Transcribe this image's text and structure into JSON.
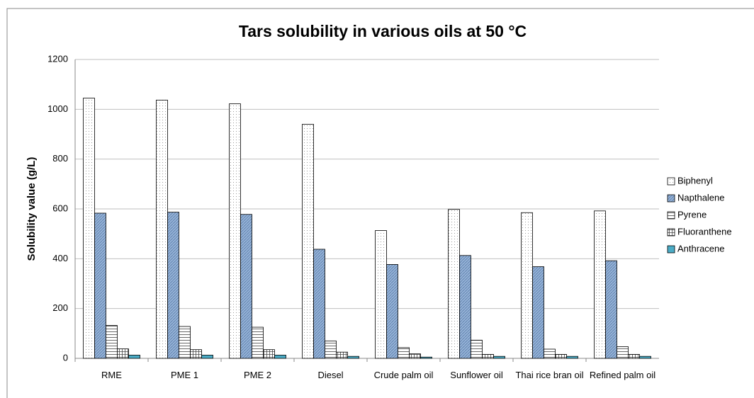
{
  "chart_data": {
    "type": "bar",
    "title": "Tars solubility in various oils at 50 °C",
    "y_label": "Solubility value (g/L)",
    "categories": [
      "RME",
      "PME 1",
      "PME 2",
      "Diesel",
      "Crude palm oil",
      "Sunflower oil",
      "Thai rice bran oil",
      "Refined palm oil"
    ],
    "series": [
      {
        "name": "Biphenyl",
        "color": "#ffffff",
        "pattern": "dots",
        "values": [
          1045,
          1037,
          1022,
          940,
          513,
          598,
          585,
          592
        ]
      },
      {
        "name": "Napthalene",
        "color": "#95b3d7",
        "pattern": "diagonal",
        "values": [
          583,
          587,
          578,
          438,
          377,
          413,
          368,
          392
        ]
      },
      {
        "name": "Pyrene",
        "color": "#ffffff",
        "pattern": "hlines",
        "values": [
          132,
          128,
          125,
          70,
          43,
          73,
          37,
          47
        ]
      },
      {
        "name": "Fluoranthene",
        "color": "#ffffff",
        "pattern": "grid",
        "values": [
          38,
          35,
          35,
          25,
          18,
          16,
          16,
          16
        ]
      },
      {
        "name": "Anthracene",
        "color": "#4bacc6",
        "pattern": "solid",
        "values": [
          13,
          13,
          13,
          8,
          5,
          8,
          8,
          8
        ]
      }
    ],
    "ylim": [
      0,
      1200
    ],
    "yticks": [
      0,
      200,
      400,
      600,
      800,
      1000,
      1200
    ],
    "grid": true,
    "legend": "right"
  }
}
